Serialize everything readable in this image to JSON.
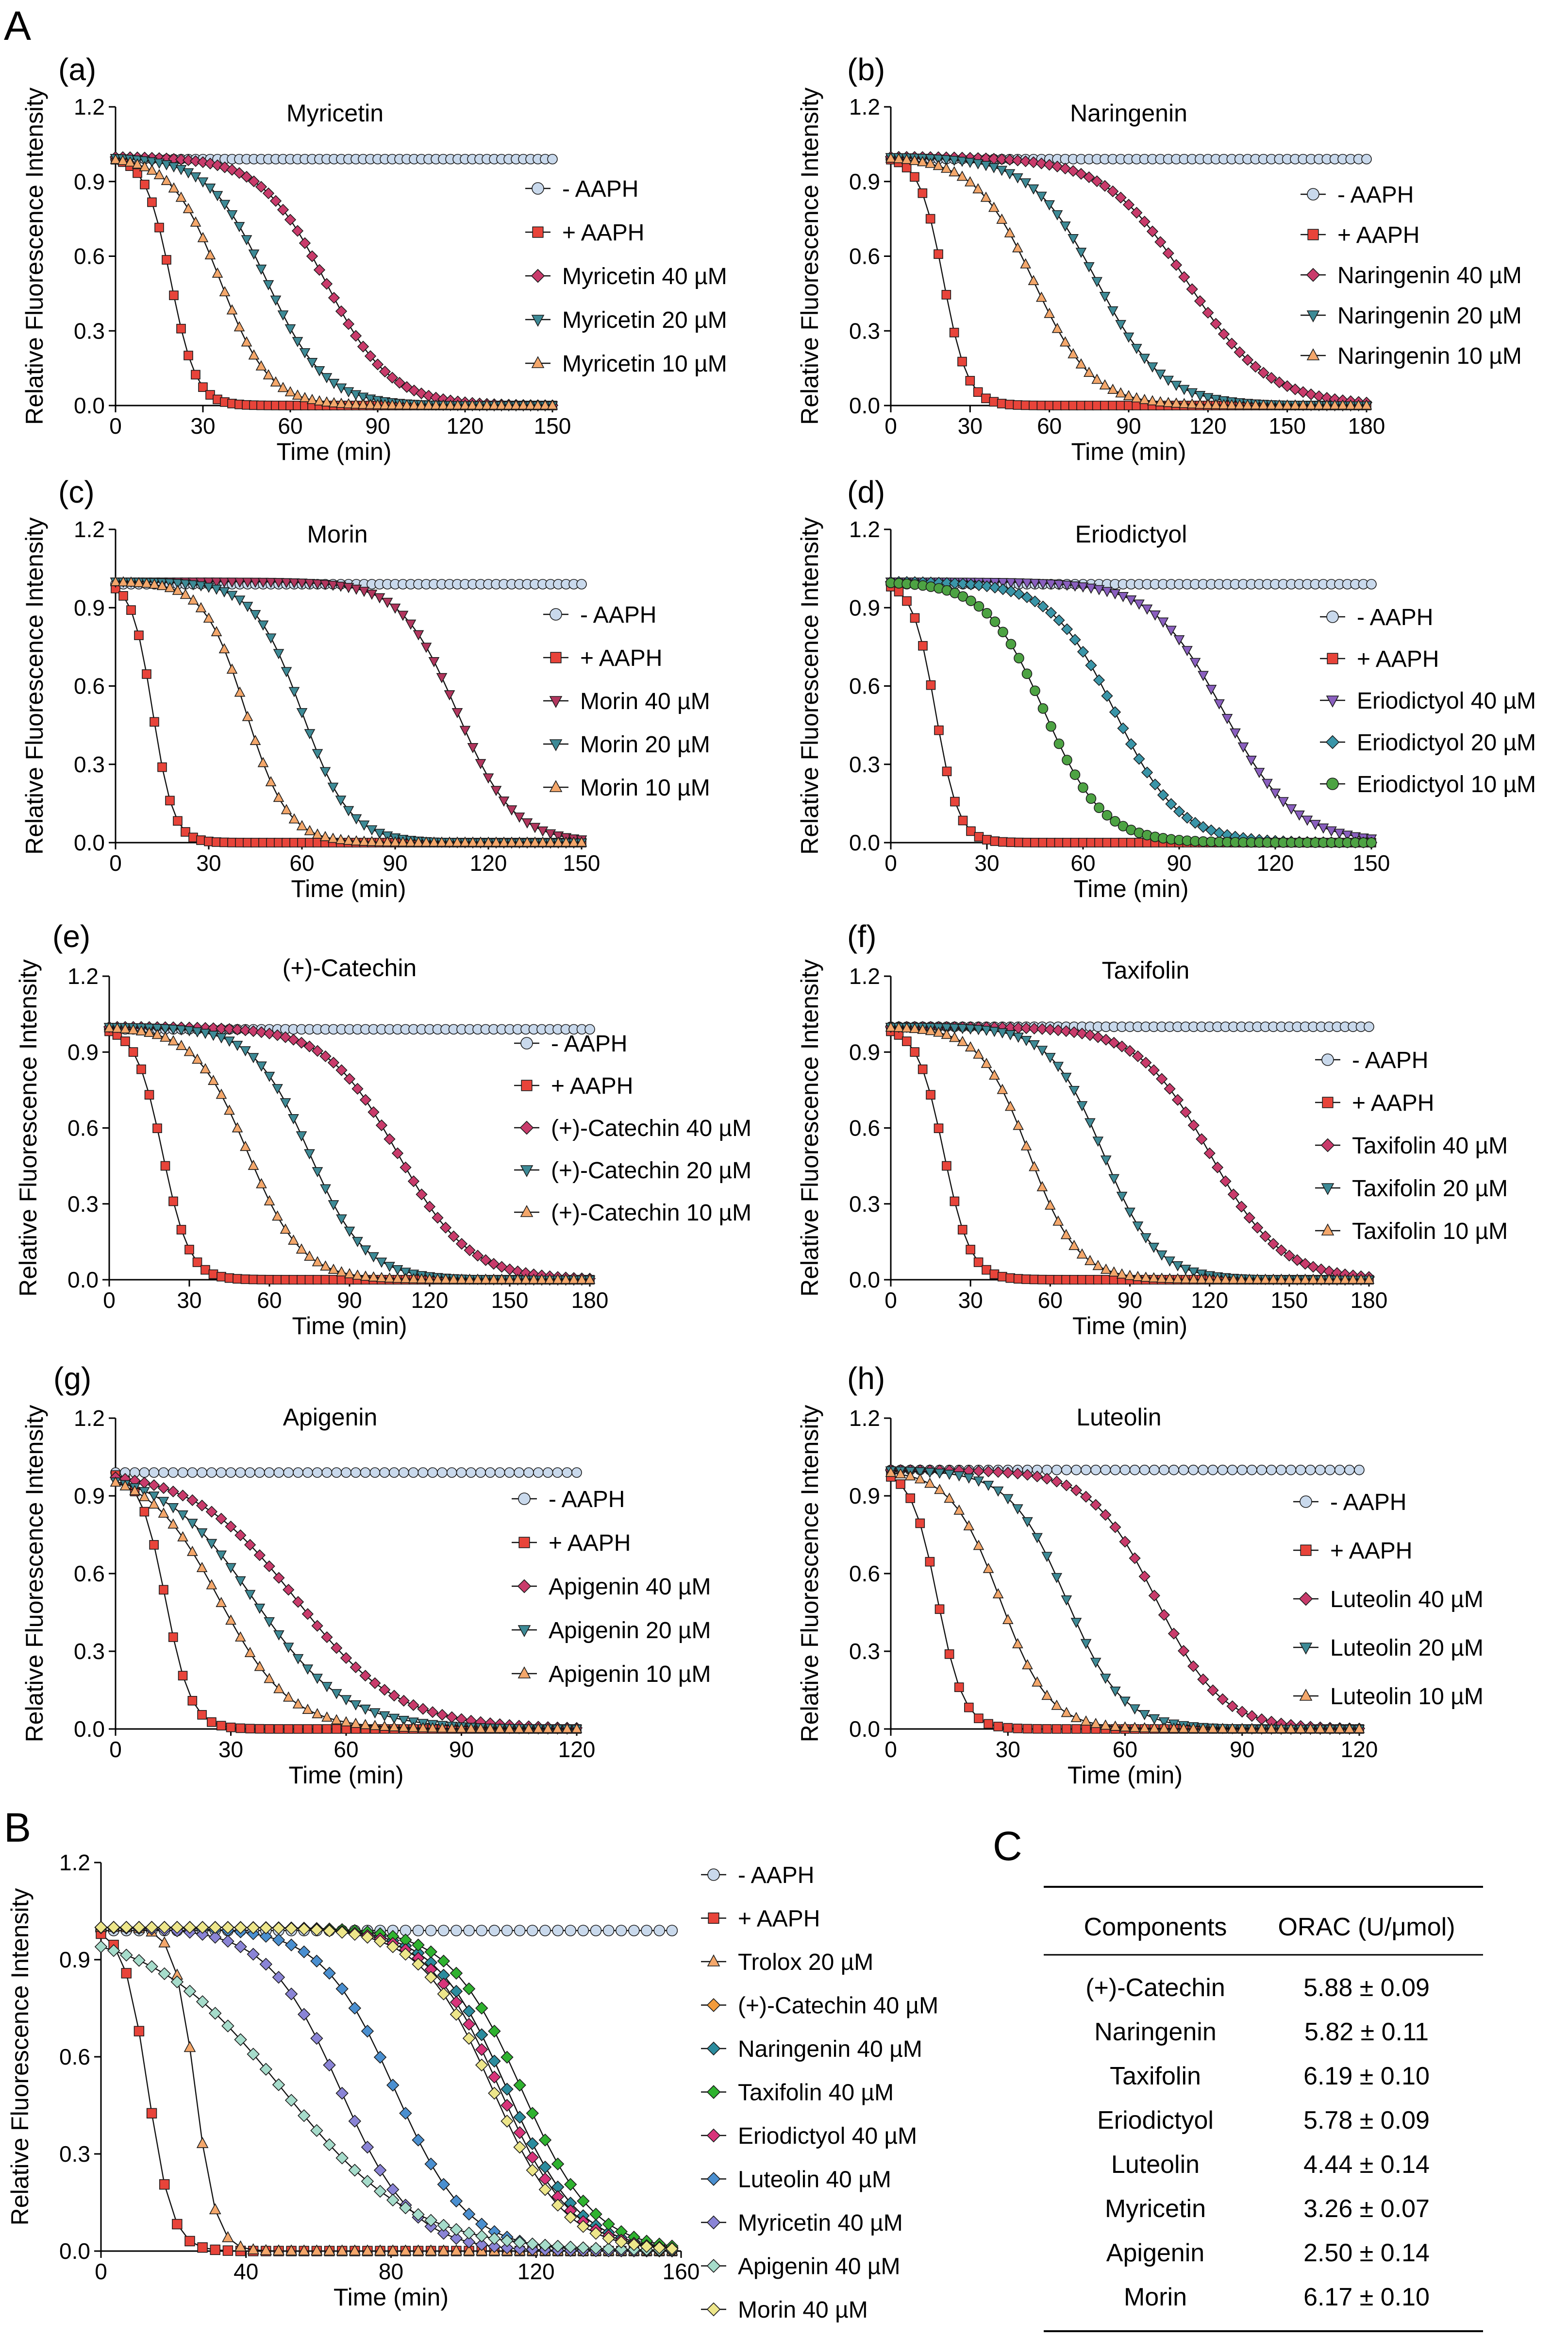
{
  "figure": {
    "label_A": "A",
    "label_B": "B",
    "label_C": "C"
  },
  "chart_data": [
    {
      "id": "a",
      "panel_label": "(a)",
      "type": "line",
      "title": "Myricetin",
      "xlabel": "Time (min)",
      "ylabel": "Relative Fluorescence Intensity",
      "xlim": [
        0,
        150
      ],
      "ylim": [
        0,
        1.2
      ],
      "xticks": [
        0,
        30,
        60,
        90,
        120,
        150
      ],
      "yticks": [
        "0.0",
        "0.3",
        "0.6",
        "0.9",
        "1.2"
      ],
      "legend_position": "right",
      "series": [
        {
          "name": "- AAPH",
          "marker": "circle",
          "color": "#c9d9ec",
          "model": {
            "kind": "flat",
            "a": 0.99
          }
        },
        {
          "name": "+ AAPH",
          "marker": "square",
          "color": "#e8443a",
          "model": {
            "kind": "logistic",
            "x0": 19,
            "k": 0.23
          }
        },
        {
          "name": "Myricetin 40 µM",
          "marker": "diamond",
          "color": "#c93b6b",
          "model": {
            "kind": "logistic",
            "x0": 72,
            "k": 0.09
          }
        },
        {
          "name": "Myricetin 20 µM",
          "marker": "tri-down",
          "color": "#3d8a96",
          "model": {
            "kind": "logistic",
            "x0": 52,
            "k": 0.1
          }
        },
        {
          "name": "Myricetin 10 µM",
          "marker": "tri-up",
          "color": "#f4a76b",
          "model": {
            "kind": "logistic",
            "x0": 36,
            "k": 0.12
          }
        }
      ]
    },
    {
      "id": "b",
      "panel_label": "(b)",
      "type": "line",
      "title": "Naringenin",
      "xlabel": "Time (min)",
      "ylabel": "Relative Fluorescence Intensity",
      "xlim": [
        0,
        180
      ],
      "ylim": [
        0,
        1.2
      ],
      "xticks": [
        0,
        30,
        60,
        90,
        120,
        150,
        180
      ],
      "yticks": [
        "0.0",
        "0.3",
        "0.6",
        "0.9",
        "1.2"
      ],
      "legend_position": "right",
      "series": [
        {
          "name": "- AAPH",
          "marker": "circle",
          "color": "#c9d9ec",
          "model": {
            "kind": "flat",
            "a": 0.99
          }
        },
        {
          "name": "+ AAPH",
          "marker": "square",
          "color": "#e8443a",
          "model": {
            "kind": "logistic",
            "x0": 20,
            "k": 0.22
          }
        },
        {
          "name": "Naringenin 40 µM",
          "marker": "diamond",
          "color": "#c93b6b",
          "model": {
            "kind": "logistic",
            "x0": 112,
            "k": 0.065
          }
        },
        {
          "name": "Naringenin 20 µM",
          "marker": "tri-down",
          "color": "#3d8a96",
          "model": {
            "kind": "logistic",
            "x0": 78,
            "k": 0.08
          }
        },
        {
          "name": "Naringenin 10 µM",
          "marker": "tri-up",
          "color": "#f4a76b",
          "model": {
            "kind": "logistic",
            "x0": 54,
            "k": 0.09
          }
        }
      ]
    },
    {
      "id": "c",
      "panel_label": "(c)",
      "type": "line",
      "title": "Morin",
      "xlabel": "Time (min)",
      "ylabel": "Relative Fluorescence Intensity",
      "xlim": [
        0,
        150
      ],
      "ylim": [
        0,
        1.2
      ],
      "xticks": [
        0,
        30,
        60,
        90,
        120,
        150
      ],
      "yticks": [
        "0.0",
        "0.3",
        "0.6",
        "0.9",
        "1.2"
      ],
      "legend_position": "right",
      "series": [
        {
          "name": "- AAPH",
          "marker": "circle",
          "color": "#c9d9ec",
          "model": {
            "kind": "flat",
            "a": 0.99
          }
        },
        {
          "name": "+ AAPH",
          "marker": "square",
          "color": "#e8443a",
          "model": {
            "kind": "logistic",
            "x0": 12,
            "k": 0.3
          }
        },
        {
          "name": "Morin 40 µM",
          "marker": "tri-down",
          "color": "#b2365e",
          "model": {
            "kind": "logistic",
            "x0": 110,
            "k": 0.11
          }
        },
        {
          "name": "Morin 20 µM",
          "marker": "tri-down",
          "color": "#3d8a96",
          "model": {
            "kind": "logistic",
            "x0": 60,
            "k": 0.13
          }
        },
        {
          "name": "Morin 10 µM",
          "marker": "tri-up",
          "color": "#f4a76b",
          "model": {
            "kind": "logistic",
            "x0": 42,
            "k": 0.15
          }
        }
      ]
    },
    {
      "id": "d",
      "panel_label": "(d)",
      "type": "line",
      "title": "Eriodictyol",
      "xlabel": "Time (min)",
      "ylabel": "Relative Fluorescence Intensity",
      "xlim": [
        0,
        150
      ],
      "ylim": [
        0,
        1.2
      ],
      "xticks": [
        0,
        30,
        60,
        90,
        120,
        150
      ],
      "yticks": [
        "0.0",
        "0.3",
        "0.6",
        "0.9",
        "1.2"
      ],
      "legend_position": "right",
      "series": [
        {
          "name": "- AAPH",
          "marker": "circle",
          "color": "#c9d9ec",
          "model": {
            "kind": "flat",
            "a": 0.99
          }
        },
        {
          "name": "+ AAPH",
          "marker": "square",
          "color": "#e8443a",
          "model": {
            "kind": "logistic",
            "x0": 14,
            "k": 0.28
          }
        },
        {
          "name": "Eriodictyol 40 µM",
          "marker": "tri-down",
          "color": "#8a5fbf",
          "model": {
            "kind": "logistic",
            "x0": 104,
            "k": 0.09
          }
        },
        {
          "name": "Eriodictyol 20 µM",
          "marker": "diamond",
          "color": "#3a95a8",
          "model": {
            "kind": "logistic",
            "x0": 70,
            "k": 0.1
          }
        },
        {
          "name": "Eriodictyol 10 µM",
          "marker": "circle",
          "color": "#4da343",
          "model": {
            "kind": "logistic",
            "x0": 48,
            "k": 0.11
          }
        }
      ]
    },
    {
      "id": "e",
      "panel_label": "(e)",
      "type": "line",
      "title": "(+)-Catechin",
      "xlabel": "Time (min)",
      "ylabel": "Relative Fluorescence Intensity",
      "xlim": [
        0,
        180
      ],
      "ylim": [
        0,
        1.2
      ],
      "xticks": [
        0,
        30,
        60,
        90,
        120,
        150,
        180
      ],
      "yticks": [
        "0.0",
        "0.3",
        "0.6",
        "0.9",
        "1.2"
      ],
      "legend_position": "right",
      "series": [
        {
          "name": "- AAPH",
          "marker": "circle",
          "color": "#c9d9ec",
          "model": {
            "kind": "flat",
            "a": 0.99
          }
        },
        {
          "name": "+ AAPH",
          "marker": "square",
          "color": "#e8443a",
          "model": {
            "kind": "logistic",
            "x0": 20,
            "k": 0.2
          }
        },
        {
          "name": "(+)-Catechin 40 µM",
          "marker": "diamond",
          "color": "#c93b6b",
          "model": {
            "kind": "logistic",
            "x0": 108,
            "k": 0.075
          }
        },
        {
          "name": "(+)-Catechin 20 µM",
          "marker": "tri-down",
          "color": "#3d8a96",
          "model": {
            "kind": "logistic",
            "x0": 75,
            "k": 0.095
          }
        },
        {
          "name": "(+)-Catechin 10 µM",
          "marker": "tri-up",
          "color": "#f4a76b",
          "model": {
            "kind": "logistic",
            "x0": 52,
            "k": 0.1
          }
        }
      ]
    },
    {
      "id": "f",
      "panel_label": "(f)",
      "type": "line",
      "title": "Taxifolin",
      "xlabel": "Time (min)",
      "ylabel": "Relative Fluorescence Intensity",
      "xlim": [
        0,
        180
      ],
      "ylim": [
        0,
        1.2
      ],
      "xticks": [
        0,
        30,
        60,
        90,
        120,
        150,
        180
      ],
      "yticks": [
        "0.0",
        "0.3",
        "0.6",
        "0.9",
        "1.2"
      ],
      "legend_position": "right",
      "series": [
        {
          "name": "- AAPH",
          "marker": "circle",
          "color": "#c9d9ec",
          "model": {
            "kind": "flat",
            "a": 1.0
          }
        },
        {
          "name": "+ AAPH",
          "marker": "square",
          "color": "#e8443a",
          "model": {
            "kind": "logistic",
            "x0": 20,
            "k": 0.2
          }
        },
        {
          "name": "Taxifolin 40 µM",
          "marker": "diamond",
          "color": "#c93b6b",
          "model": {
            "kind": "logistic",
            "x0": 120,
            "k": 0.075
          }
        },
        {
          "name": "Taxifolin 20 µM",
          "marker": "tri-down",
          "color": "#3d8a96",
          "model": {
            "kind": "logistic",
            "x0": 80,
            "k": 0.1
          }
        },
        {
          "name": "Taxifolin 10 µM",
          "marker": "tri-up",
          "color": "#f4a76b",
          "model": {
            "kind": "logistic",
            "x0": 52,
            "k": 0.11
          }
        }
      ]
    },
    {
      "id": "g",
      "panel_label": "(g)",
      "type": "line",
      "title": "Apigenin",
      "xlabel": "Time (min)",
      "ylabel": "Relative Fluorescence Intensity",
      "xlim": [
        0,
        120
      ],
      "ylim": [
        0,
        1.2
      ],
      "xticks": [
        0,
        30,
        60,
        90,
        120
      ],
      "yticks": [
        "0.0",
        "0.3",
        "0.6",
        "0.9",
        "1.2"
      ],
      "legend_position": "right",
      "series": [
        {
          "name": "- AAPH",
          "marker": "circle",
          "color": "#c9d9ec",
          "model": {
            "kind": "flat",
            "a": 0.99
          }
        },
        {
          "name": "+ AAPH",
          "marker": "square",
          "color": "#e8443a",
          "model": {
            "kind": "logistic",
            "x0": 13,
            "k": 0.3
          }
        },
        {
          "name": "Apigenin 40 µM",
          "marker": "diamond",
          "color": "#c93b6b",
          "model": {
            "kind": "logistic",
            "x0": 47,
            "k": 0.075
          }
        },
        {
          "name": "Apigenin 20 µM",
          "marker": "tri-down",
          "color": "#3d8a96",
          "model": {
            "kind": "logistic",
            "x0": 36,
            "k": 0.085
          }
        },
        {
          "name": "Apigenin 10 µM",
          "marker": "tri-up",
          "color": "#f4a76b",
          "model": {
            "kind": "logistic",
            "x0": 27,
            "k": 0.11
          }
        }
      ]
    },
    {
      "id": "h",
      "panel_label": "(h)",
      "type": "line",
      "title": "Luteolin",
      "xlabel": "Time (min)",
      "ylabel": "Relative Fluorescence Intensity",
      "xlim": [
        0,
        120
      ],
      "ylim": [
        0,
        1.2
      ],
      "xticks": [
        0,
        30,
        60,
        90,
        120
      ],
      "yticks": [
        "0.0",
        "0.3",
        "0.6",
        "0.9",
        "1.2"
      ],
      "legend_position": "right",
      "series": [
        {
          "name": "- AAPH",
          "marker": "circle",
          "color": "#c9d9ec",
          "model": {
            "kind": "flat",
            "a": 1.0
          }
        },
        {
          "name": "+ AAPH",
          "marker": "square",
          "color": "#e8443a",
          "model": {
            "kind": "logistic",
            "x0": 12,
            "k": 0.3
          }
        },
        {
          "name": "Luteolin 40 µM",
          "marker": "diamond",
          "color": "#c93b6b",
          "model": {
            "kind": "logistic",
            "x0": 68,
            "k": 0.12
          }
        },
        {
          "name": "Luteolin 20 µM",
          "marker": "tri-down",
          "color": "#3d8a96",
          "model": {
            "kind": "logistic",
            "x0": 45,
            "k": 0.14
          }
        },
        {
          "name": "Luteolin 10 µM",
          "marker": "tri-up",
          "color": "#f4a76b",
          "model": {
            "kind": "logistic",
            "x0": 28,
            "k": 0.16
          }
        }
      ]
    },
    {
      "id": "B",
      "panel_label": "",
      "type": "line",
      "title": "",
      "xlabel": "Time (min)",
      "ylabel": "Relative Fluorescence Intensity",
      "xlim": [
        0,
        160
      ],
      "ylim": [
        0,
        1.2
      ],
      "xticks": [
        0,
        40,
        80,
        120,
        160
      ],
      "yticks": [
        "0.0",
        "0.3",
        "0.6",
        "0.9",
        "1.2"
      ],
      "legend_position": "right",
      "series": [
        {
          "name": "- AAPH",
          "marker": "circle",
          "color": "#c9d9ec",
          "model": {
            "kind": "flat",
            "a": 0.99
          }
        },
        {
          "name": "+ AAPH",
          "marker": "square",
          "color": "#e8443a",
          "model": {
            "kind": "logistic",
            "x0": 13,
            "k": 0.3
          }
        },
        {
          "name": "Trolox 20 µM",
          "marker": "tri-up",
          "color": "#f4a76b",
          "model": {
            "kind": "logistic",
            "x0": 26,
            "k": 0.35
          }
        },
        {
          "name": "(+)-Catechin 40 µM",
          "marker": "diamond",
          "color": "#f29b3b",
          "model": {
            "kind": "logistic",
            "x0": 112,
            "k": 0.1
          }
        },
        {
          "name": "Naringenin 40 µM",
          "marker": "diamond",
          "color": "#2b8c9e",
          "model": {
            "kind": "logistic",
            "x0": 112,
            "k": 0.1
          }
        },
        {
          "name": "Taxifolin 40 µM",
          "marker": "diamond",
          "color": "#2fb22f",
          "model": {
            "kind": "logistic",
            "x0": 116,
            "k": 0.1
          }
        },
        {
          "name": "Eriodictyol 40 µM",
          "marker": "diamond",
          "color": "#d8337a",
          "model": {
            "kind": "logistic",
            "x0": 110,
            "k": 0.1
          }
        },
        {
          "name": "Luteolin 40 µM",
          "marker": "diamond",
          "color": "#4a8fd0",
          "model": {
            "kind": "logistic",
            "x0": 81,
            "k": 0.1
          }
        },
        {
          "name": "Myricetin 40 µM",
          "marker": "diamond",
          "color": "#8a84d6",
          "model": {
            "kind": "logistic",
            "x0": 66,
            "k": 0.1
          }
        },
        {
          "name": "Apigenin 40 µM",
          "marker": "diamond",
          "color": "#a6dccb",
          "model": {
            "kind": "logistic",
            "x0": 50,
            "k": 0.055
          }
        },
        {
          "name": "Morin 40 µM",
          "marker": "diamond",
          "color": "#ede68a",
          "model": {
            "kind": "logistic",
            "x0": 108,
            "k": 0.1
          }
        }
      ]
    },
    {
      "id": "C",
      "type": "table",
      "title": "",
      "columns": [
        "Components",
        "ORAC (U/μmol)"
      ],
      "rows": [
        [
          "(+)-Catechin",
          "5.88 ± 0.09"
        ],
        [
          "Naringenin",
          "5.82 ± 0.11"
        ],
        [
          "Taxifolin",
          "6.19 ± 0.10"
        ],
        [
          "Eriodictyol",
          "5.78 ± 0.09"
        ],
        [
          "Luteolin",
          "4.44 ± 0.14"
        ],
        [
          "Myricetin",
          "3.26 ± 0.07"
        ],
        [
          "Apigenin",
          "2.50 ± 0.14"
        ],
        [
          "Morin",
          "6.17 ± 0.10"
        ]
      ]
    }
  ]
}
